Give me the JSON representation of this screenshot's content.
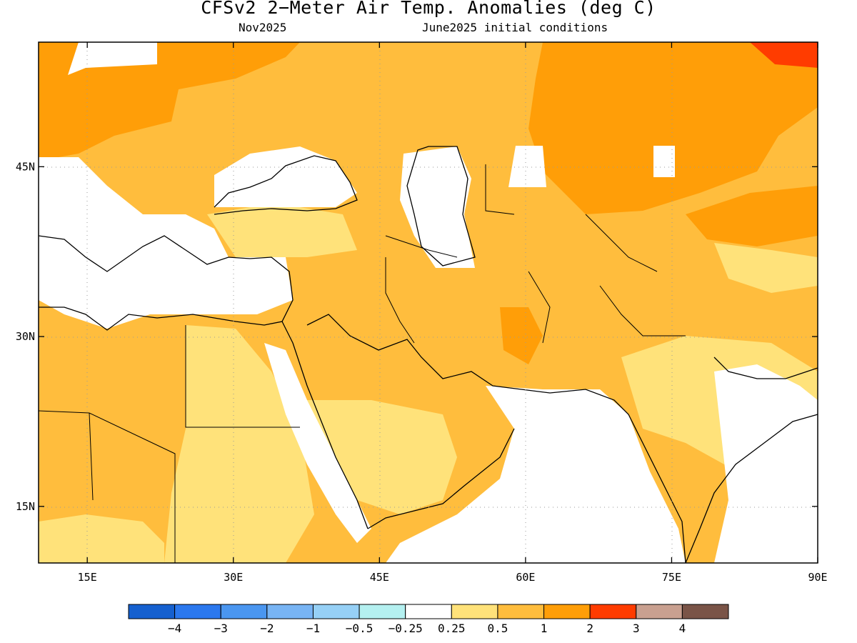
{
  "title": "CFSv2 2−Meter Air Temp. Anomalies (deg C)",
  "subtitle_left": "Nov2025",
  "subtitle_right": "June2025 initial conditions",
  "lon_ticks": [
    {
      "value": 15,
      "label": "15E"
    },
    {
      "value": 30,
      "label": "30E"
    },
    {
      "value": 45,
      "label": "45E"
    },
    {
      "value": 60,
      "label": "60E"
    },
    {
      "value": 75,
      "label": "75E"
    },
    {
      "value": 90,
      "label": "90E"
    }
  ],
  "lat_ticks": [
    {
      "value": 45,
      "label": "45N"
    },
    {
      "value": 30,
      "label": "30N"
    },
    {
      "value": 15,
      "label": "15N"
    }
  ],
  "map_extent": {
    "lon_min": 10,
    "lon_max": 90,
    "lat_min": 10,
    "lat_max": 56
  },
  "colorbar": {
    "colors": [
      "#1560cf",
      "#2b78ee",
      "#4a96f0",
      "#78b4f4",
      "#96d0f6",
      "#b4f0f0",
      "#ffffff",
      "#ffe27a",
      "#ffbd3d",
      "#ff9e08",
      "#ff3c00",
      "#c9a090",
      "#7a5447"
    ],
    "labels": [
      "−4",
      "−3",
      "−2",
      "−1",
      "−0.5",
      "−0.25",
      "0.25",
      "0.5",
      "1",
      "2",
      "3",
      "4"
    ]
  },
  "palette": {
    "weak_warm": "#ffe27a",
    "warm": "#ffbd3d",
    "warmer": "#ff9e08",
    "hot": "#ff3c00",
    "neutral": "#ffffff"
  }
}
